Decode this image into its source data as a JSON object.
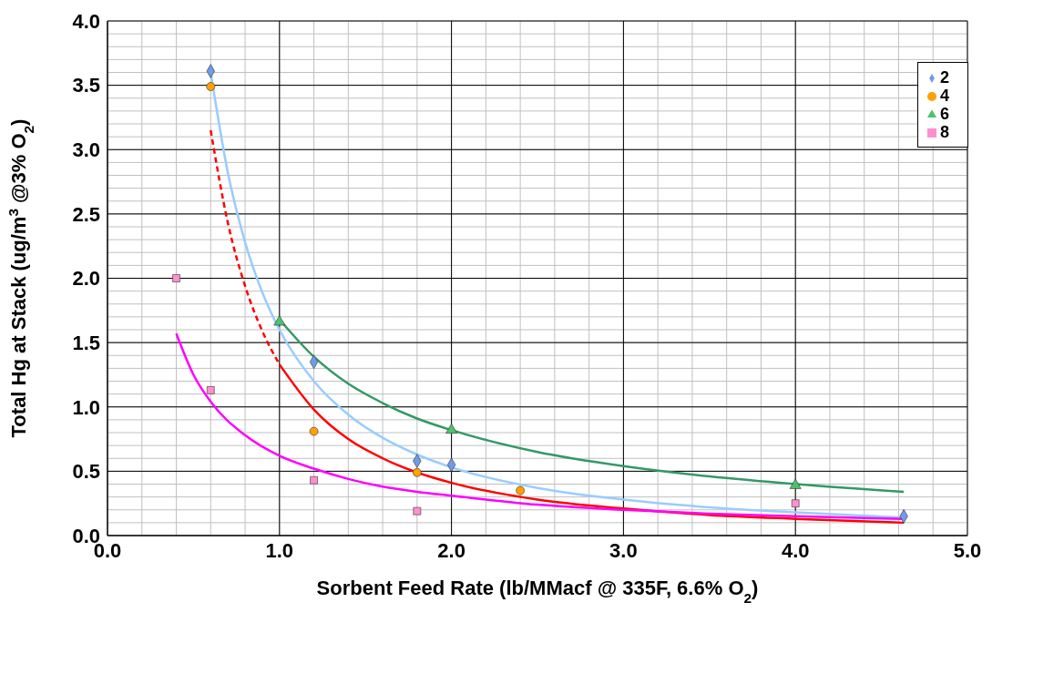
{
  "chart_data": {
    "type": "scatter",
    "xlabel": "Sorbent Feed Rate (lb/MMacf @ 335F, 6.6% O$_{2}$)",
    "ylabel": "Total Hg at Stack (ug/m$^{3}$ @3% O$_{2}$)",
    "xlim": [
      0,
      5
    ],
    "ylim": [
      0,
      4
    ],
    "xticks": [
      {
        "value": 0,
        "label": "0.0"
      },
      {
        "value": 0.2,
        "label": null
      },
      {
        "value": 0.4,
        "label": null
      },
      {
        "value": 0.6,
        "label": null
      },
      {
        "value": 0.8,
        "label": null
      },
      {
        "value": 1,
        "label": "1.0"
      },
      {
        "value": 1.2,
        "label": null
      },
      {
        "value": 1.4,
        "label": null
      },
      {
        "value": 1.6,
        "label": null
      },
      {
        "value": 1.8,
        "label": null
      },
      {
        "value": 2,
        "label": "2.0"
      },
      {
        "value": 2.2,
        "label": null
      },
      {
        "value": 2.4,
        "label": null
      },
      {
        "value": 2.6,
        "label": null
      },
      {
        "value": 2.8,
        "label": null
      },
      {
        "value": 3,
        "label": "3.0"
      },
      {
        "value": 3.2,
        "label": null
      },
      {
        "value": 3.4,
        "label": null
      },
      {
        "value": 3.6,
        "label": null
      },
      {
        "value": 3.8,
        "label": null
      },
      {
        "value": 4,
        "label": "4.0"
      },
      {
        "value": 4.2,
        "label": null
      },
      {
        "value": 4.4,
        "label": null
      },
      {
        "value": 4.6,
        "label": null
      },
      {
        "value": 4.8,
        "label": null
      },
      {
        "value": 5,
        "label": "5.0"
      }
    ],
    "yticks": [
      {
        "value": 0,
        "label": "0.0"
      },
      {
        "value": 0.1,
        "label": null
      },
      {
        "value": 0.2,
        "label": null
      },
      {
        "value": 0.3,
        "label": null
      },
      {
        "value": 0.4,
        "label": null
      },
      0.5,
      {
        "value": 0.6,
        "label": null
      },
      {
        "value": 0.7,
        "label": null
      },
      {
        "value": 0.8,
        "label": null
      },
      {
        "value": 0.9,
        "label": null
      },
      {
        "value": 1,
        "label": "1.0"
      },
      {
        "value": 1.1,
        "label": null
      },
      {
        "value": 1.2,
        "label": null
      },
      {
        "value": 1.3,
        "label": null
      },
      {
        "value": 1.4,
        "label": null
      },
      1.5,
      {
        "value": 1.6,
        "label": null
      },
      {
        "value": 1.7,
        "label": null
      },
      {
        "value": 1.8,
        "label": null
      },
      {
        "value": 1.9,
        "label": null
      },
      {
        "value": 2,
        "label": "2.0"
      },
      {
        "value": 2.1,
        "label": null
      },
      {
        "value": 2.2,
        "label": null
      },
      {
        "value": 2.3,
        "label": null
      },
      {
        "value": 2.4,
        "label": null
      },
      2.5,
      {
        "value": 2.6,
        "label": null
      },
      {
        "value": 2.7,
        "label": null
      },
      {
        "value": 2.8,
        "label": null
      },
      {
        "value": 2.9,
        "label": null
      },
      {
        "value": 3,
        "label": "3.0"
      },
      {
        "value": 3.1,
        "label": null
      },
      {
        "value": 3.2,
        "label": null
      },
      {
        "value": 3.3,
        "label": null
      },
      {
        "value": 3.4,
        "label": null
      },
      3.5,
      {
        "value": 3.6,
        "label": null
      },
      {
        "value": 3.7,
        "label": null
      },
      {
        "value": 3.8,
        "label": null
      },
      {
        "value": 3.9,
        "label": null
      },
      {
        "value": 4,
        "label": "4.0"
      }
    ],
    "grid": true,
    "legend": "top right",
    "series": [
      {
        "name": "2",
        "marker": "diamond",
        "color": "#6f9be8",
        "x": [
          0.6,
          1.2,
          1.8,
          2.0,
          4.63
        ],
        "values": [
          3.61,
          1.35,
          0.58,
          0.55,
          0.15
        ]
      },
      {
        "name": "4",
        "marker": "circle",
        "color": "#ffa000",
        "x": [
          0.6,
          1.2,
          1.8,
          2.4
        ],
        "values": [
          3.49,
          0.81,
          0.49,
          0.35
        ]
      },
      {
        "name": "6",
        "marker": "triangle",
        "color": "#4cc26c",
        "x": [
          1.0,
          2.0,
          4.0
        ],
        "values": [
          1.66,
          0.82,
          0.39
        ]
      },
      {
        "name": "8",
        "marker": "square",
        "color": "#ff8fcf",
        "x": [
          0.4,
          0.6,
          1.2,
          1.8,
          4.0
        ],
        "values": [
          2.0,
          1.13,
          0.43,
          0.19,
          0.25
        ]
      },
      {
        "type": "line",
        "line_style": "solid",
        "color": "#99ccff",
        "x": [
          0.6,
          0.7,
          0.8,
          0.9,
          1.0,
          1.2,
          1.4,
          1.6,
          1.8,
          2.0,
          2.5,
          3.0,
          3.5,
          4.0,
          4.63
        ],
        "values": [
          3.6,
          2.82,
          2.28,
          1.89,
          1.6,
          1.2,
          0.94,
          0.76,
          0.63,
          0.53,
          0.37,
          0.28,
          0.22,
          0.18,
          0.14
        ]
      },
      {
        "type": "line",
        "line_style": "dashed",
        "color": "#ff0000",
        "x": [
          0.6,
          0.7,
          0.8,
          0.9,
          1.0
        ],
        "values": [
          3.15,
          2.43,
          1.94,
          1.59,
          1.33
        ]
      },
      {
        "type": "line",
        "line_style": "solid",
        "color": "#ff0000",
        "x": [
          1.0,
          1.2,
          1.4,
          1.6,
          1.8,
          2.0,
          2.5,
          3.0,
          3.5,
          4.0,
          4.63
        ],
        "values": [
          1.33,
          0.98,
          0.75,
          0.6,
          0.49,
          0.41,
          0.28,
          0.21,
          0.16,
          0.13,
          0.1
        ]
      },
      {
        "type": "line",
        "line_style": "solid",
        "color": "#339966",
        "x": [
          1.0,
          1.2,
          1.4,
          1.6,
          1.8,
          2.0,
          2.5,
          3.0,
          3.5,
          4.0,
          4.63
        ],
        "values": [
          1.68,
          1.39,
          1.18,
          1.03,
          0.91,
          0.82,
          0.65,
          0.54,
          0.46,
          0.4,
          0.34
        ]
      },
      {
        "type": "line",
        "line_style": "solid",
        "color": "#ff00ff",
        "x": [
          0.4,
          0.5,
          0.6,
          0.8,
          1.0,
          1.2,
          1.4,
          1.6,
          1.8,
          2.0,
          2.5,
          3.0,
          3.5,
          4.0,
          4.63
        ],
        "values": [
          1.57,
          1.25,
          1.04,
          0.78,
          0.62,
          0.52,
          0.44,
          0.38,
          0.34,
          0.31,
          0.24,
          0.2,
          0.17,
          0.15,
          0.13
        ]
      }
    ]
  }
}
